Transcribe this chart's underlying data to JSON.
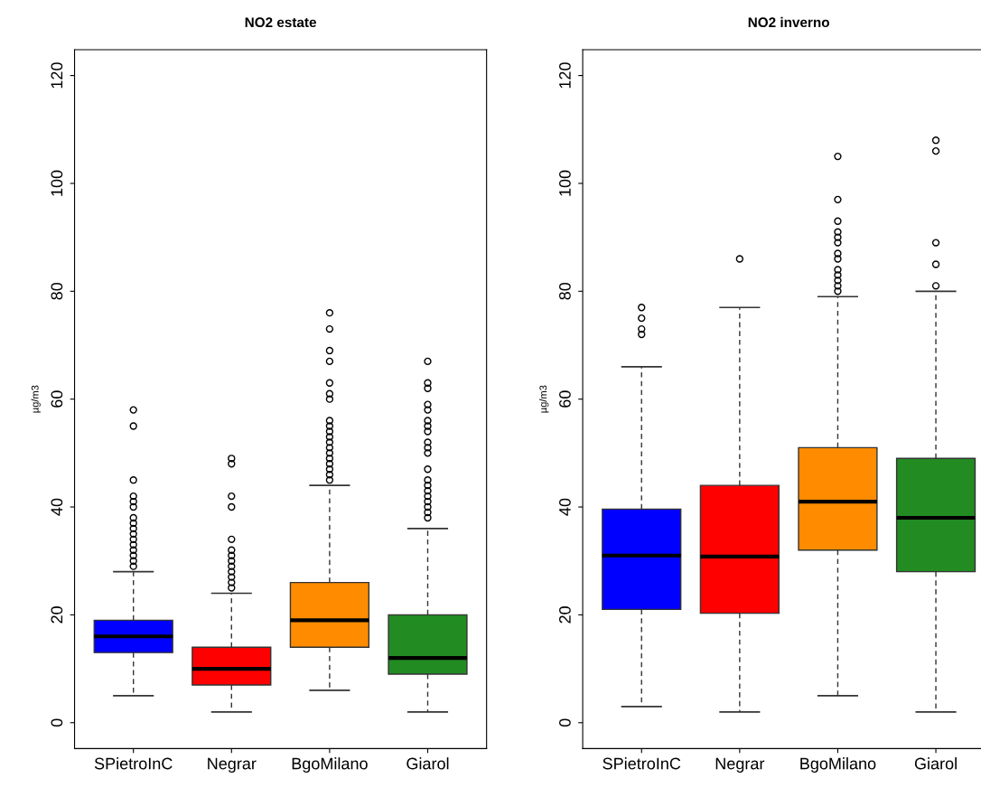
{
  "chart_data": [
    {
      "type": "box",
      "title": "NO2 estate",
      "ylabel": "µg/m3",
      "categories": [
        "SPietroInC",
        "Negrar",
        "BgoMilano",
        "Giarol"
      ],
      "colors": [
        "#0000ff",
        "#ff0000",
        "#ff8c00",
        "#228b22"
      ],
      "ylim": [
        -4.8,
        124.8
      ],
      "yticks": [
        0,
        20,
        40,
        60,
        80,
        100,
        120
      ],
      "grid": false,
      "boxes": [
        {
          "low": 5,
          "q1": 13,
          "median": 16,
          "q3": 19,
          "high": 28,
          "outliers": [
            58,
            55,
            45,
            42,
            41,
            40,
            38,
            37,
            36,
            35,
            34,
            33,
            32,
            31,
            30,
            29
          ]
        },
        {
          "low": 2,
          "q1": 7,
          "median": 10,
          "q3": 14,
          "high": 24,
          "outliers": [
            49,
            48,
            42,
            40,
            34,
            32,
            31,
            30,
            29,
            28,
            27,
            26,
            25
          ]
        },
        {
          "low": 6,
          "q1": 14,
          "median": 19,
          "q3": 26,
          "high": 44,
          "outliers": [
            76,
            73,
            69,
            67,
            63,
            61,
            60,
            56,
            55,
            54,
            53,
            52,
            51,
            50,
            49,
            48,
            47,
            46,
            45
          ]
        },
        {
          "low": 2,
          "q1": 9,
          "median": 12,
          "q3": 20,
          "high": 36,
          "outliers": [
            67,
            63,
            62,
            59,
            58,
            56,
            55,
            54,
            52,
            51,
            50,
            47,
            45,
            44,
            43,
            42,
            41,
            40,
            39,
            38
          ]
        }
      ]
    },
    {
      "type": "box",
      "title": "NO2 inverno",
      "ylabel": "µg/m3",
      "categories": [
        "SPietroInC",
        "Negrar",
        "BgoMilano",
        "Giarol"
      ],
      "colors": [
        "#0000ff",
        "#ff0000",
        "#ff8c00",
        "#228b22"
      ],
      "ylim": [
        -4.8,
        124.8
      ],
      "yticks": [
        0,
        20,
        40,
        60,
        80,
        100,
        120
      ],
      "grid": false,
      "boxes": [
        {
          "low": 3,
          "q1": 21,
          "median": 31,
          "q3": 39.6,
          "high": 66,
          "outliers": [
            77,
            75,
            73,
            72
          ]
        },
        {
          "low": 2,
          "q1": 20.3,
          "median": 30.8,
          "q3": 44,
          "high": 77,
          "outliers": [
            86
          ]
        },
        {
          "low": 5,
          "q1": 32,
          "median": 41,
          "q3": 51,
          "high": 79,
          "outliers": [
            105,
            97,
            93,
            91,
            90,
            89,
            87,
            86,
            84,
            83,
            82,
            81,
            80
          ]
        },
        {
          "low": 2,
          "q1": 28,
          "median": 38,
          "q3": 49,
          "high": 80,
          "outliers": [
            108,
            106,
            89,
            85,
            81
          ]
        }
      ]
    }
  ]
}
